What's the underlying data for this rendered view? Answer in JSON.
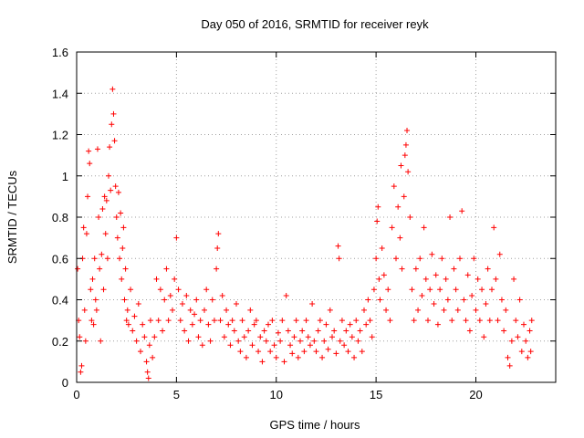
{
  "chart_data": {
    "type": "scatter",
    "title": "Day 050 of 2016, SRMTID for receiver reyk",
    "xlabel": "GPS time / hours",
    "ylabel": "SRMTID / TECUs",
    "xlim": [
      0,
      24
    ],
    "ylim": [
      0,
      1.6
    ],
    "x_ticks": [
      0,
      5,
      10,
      15,
      20
    ],
    "x_tick_labels": [
      "0",
      "5",
      "10",
      "15",
      "20"
    ],
    "y_ticks": [
      0,
      0.2,
      0.4,
      0.6,
      0.8,
      1.0,
      1.2,
      1.4,
      1.6
    ],
    "y_tick_labels": [
      "0",
      "0.2",
      "0.4",
      "0.6",
      "0.8",
      "1",
      "1.2",
      "1.4",
      "1.6"
    ],
    "grid": true,
    "marker": "+",
    "color": "#ff0000",
    "series": [
      {
        "name": "SRMTID",
        "points": [
          [
            0.05,
            0.55
          ],
          [
            0.1,
            0.3
          ],
          [
            0.15,
            0.22
          ],
          [
            0.2,
            0.05
          ],
          [
            0.25,
            0.08
          ],
          [
            0.3,
            0.6
          ],
          [
            0.35,
            0.75
          ],
          [
            0.4,
            0.35
          ],
          [
            0.45,
            0.2
          ],
          [
            0.5,
            0.72
          ],
          [
            0.55,
            0.9
          ],
          [
            0.6,
            1.12
          ],
          [
            0.65,
            1.06
          ],
          [
            0.7,
            0.45
          ],
          [
            0.75,
            0.3
          ],
          [
            0.8,
            0.5
          ],
          [
            0.85,
            0.28
          ],
          [
            0.9,
            0.6
          ],
          [
            0.95,
            0.4
          ],
          [
            1.0,
            0.35
          ],
          [
            1.05,
            1.13
          ],
          [
            1.1,
            0.8
          ],
          [
            1.15,
            0.55
          ],
          [
            1.2,
            0.2
          ],
          [
            1.25,
            0.62
          ],
          [
            1.3,
            0.84
          ],
          [
            1.35,
            0.45
          ],
          [
            1.4,
            0.9
          ],
          [
            1.45,
            0.72
          ],
          [
            1.5,
            0.88
          ],
          [
            1.55,
            0.6
          ],
          [
            1.6,
            1.0
          ],
          [
            1.65,
            1.14
          ],
          [
            1.7,
            0.93
          ],
          [
            1.75,
            1.25
          ],
          [
            1.8,
            1.42
          ],
          [
            1.85,
            1.3
          ],
          [
            1.9,
            1.17
          ],
          [
            1.95,
            0.95
          ],
          [
            2.0,
            0.8
          ],
          [
            2.05,
            0.7
          ],
          [
            2.1,
            0.92
          ],
          [
            2.15,
            0.6
          ],
          [
            2.2,
            0.82
          ],
          [
            2.25,
            0.5
          ],
          [
            2.3,
            0.65
          ],
          [
            2.35,
            0.75
          ],
          [
            2.4,
            0.4
          ],
          [
            2.45,
            0.55
          ],
          [
            2.5,
            0.3
          ],
          [
            2.55,
            0.35
          ],
          [
            2.6,
            0.28
          ],
          [
            2.7,
            0.45
          ],
          [
            2.8,
            0.25
          ],
          [
            2.9,
            0.32
          ],
          [
            3.0,
            0.2
          ],
          [
            3.1,
            0.38
          ],
          [
            3.2,
            0.15
          ],
          [
            3.3,
            0.28
          ],
          [
            3.4,
            0.22
          ],
          [
            3.5,
            0.1
          ],
          [
            3.55,
            0.05
          ],
          [
            3.6,
            0.02
          ],
          [
            3.65,
            0.18
          ],
          [
            3.7,
            0.3
          ],
          [
            3.8,
            0.12
          ],
          [
            3.9,
            0.22
          ],
          [
            4.0,
            0.5
          ],
          [
            4.1,
            0.3
          ],
          [
            4.2,
            0.45
          ],
          [
            4.3,
            0.25
          ],
          [
            4.4,
            0.4
          ],
          [
            4.5,
            0.55
          ],
          [
            4.6,
            0.3
          ],
          [
            4.7,
            0.42
          ],
          [
            4.8,
            0.35
          ],
          [
            4.9,
            0.5
          ],
          [
            5.0,
            0.7
          ],
          [
            5.1,
            0.45
          ],
          [
            5.2,
            0.3
          ],
          [
            5.3,
            0.38
          ],
          [
            5.4,
            0.25
          ],
          [
            5.5,
            0.42
          ],
          [
            5.6,
            0.2
          ],
          [
            5.7,
            0.35
          ],
          [
            5.8,
            0.28
          ],
          [
            5.9,
            0.33
          ],
          [
            6.0,
            0.4
          ],
          [
            6.1,
            0.22
          ],
          [
            6.2,
            0.3
          ],
          [
            6.3,
            0.18
          ],
          [
            6.4,
            0.35
          ],
          [
            6.5,
            0.45
          ],
          [
            6.6,
            0.28
          ],
          [
            6.7,
            0.2
          ],
          [
            6.8,
            0.4
          ],
          [
            6.9,
            0.3
          ],
          [
            7.0,
            0.55
          ],
          [
            7.05,
            0.65
          ],
          [
            7.1,
            0.72
          ],
          [
            7.2,
            0.3
          ],
          [
            7.3,
            0.42
          ],
          [
            7.4,
            0.22
          ],
          [
            7.5,
            0.35
          ],
          [
            7.6,
            0.28
          ],
          [
            7.7,
            0.18
          ],
          [
            7.8,
            0.3
          ],
          [
            7.9,
            0.25
          ],
          [
            8.0,
            0.38
          ],
          [
            8.1,
            0.2
          ],
          [
            8.2,
            0.15
          ],
          [
            8.3,
            0.3
          ],
          [
            8.4,
            0.22
          ],
          [
            8.5,
            0.12
          ],
          [
            8.6,
            0.25
          ],
          [
            8.7,
            0.35
          ],
          [
            8.8,
            0.18
          ],
          [
            8.9,
            0.28
          ],
          [
            9.0,
            0.3
          ],
          [
            9.1,
            0.15
          ],
          [
            9.2,
            0.22
          ],
          [
            9.3,
            0.1
          ],
          [
            9.4,
            0.25
          ],
          [
            9.5,
            0.2
          ],
          [
            9.6,
            0.28
          ],
          [
            9.7,
            0.15
          ],
          [
            9.8,
            0.3
          ],
          [
            9.9,
            0.18
          ],
          [
            10.0,
            0.12
          ],
          [
            10.1,
            0.24
          ],
          [
            10.2,
            0.2
          ],
          [
            10.3,
            0.3
          ],
          [
            10.4,
            0.1
          ],
          [
            10.5,
            0.42
          ],
          [
            10.6,
            0.25
          ],
          [
            10.7,
            0.18
          ],
          [
            10.8,
            0.14
          ],
          [
            10.9,
            0.22
          ],
          [
            11.0,
            0.3
          ],
          [
            11.1,
            0.12
          ],
          [
            11.2,
            0.2
          ],
          [
            11.3,
            0.25
          ],
          [
            11.4,
            0.15
          ],
          [
            11.5,
            0.3
          ],
          [
            11.6,
            0.22
          ],
          [
            11.7,
            0.18
          ],
          [
            11.8,
            0.38
          ],
          [
            11.9,
            0.2
          ],
          [
            12.0,
            0.15
          ],
          [
            12.1,
            0.25
          ],
          [
            12.2,
            0.3
          ],
          [
            12.3,
            0.12
          ],
          [
            12.4,
            0.2
          ],
          [
            12.5,
            0.28
          ],
          [
            12.6,
            0.16
          ],
          [
            12.7,
            0.35
          ],
          [
            12.8,
            0.22
          ],
          [
            12.9,
            0.25
          ],
          [
            13.0,
            0.14
          ],
          [
            13.1,
            0.66
          ],
          [
            13.15,
            0.6
          ],
          [
            13.2,
            0.2
          ],
          [
            13.3,
            0.3
          ],
          [
            13.4,
            0.18
          ],
          [
            13.5,
            0.25
          ],
          [
            13.6,
            0.15
          ],
          [
            13.7,
            0.28
          ],
          [
            13.8,
            0.22
          ],
          [
            13.9,
            0.12
          ],
          [
            14.0,
            0.3
          ],
          [
            14.1,
            0.2
          ],
          [
            14.2,
            0.25
          ],
          [
            14.3,
            0.15
          ],
          [
            14.4,
            0.35
          ],
          [
            14.5,
            0.28
          ],
          [
            14.6,
            0.4
          ],
          [
            14.7,
            0.3
          ],
          [
            14.8,
            0.22
          ],
          [
            14.9,
            0.45
          ],
          [
            15.0,
            0.6
          ],
          [
            15.05,
            0.78
          ],
          [
            15.1,
            0.85
          ],
          [
            15.15,
            0.5
          ],
          [
            15.2,
            0.4
          ],
          [
            15.3,
            0.65
          ],
          [
            15.4,
            0.52
          ],
          [
            15.5,
            0.35
          ],
          [
            15.6,
            0.45
          ],
          [
            15.7,
            0.3
          ],
          [
            15.8,
            0.75
          ],
          [
            15.9,
            0.95
          ],
          [
            16.0,
            0.6
          ],
          [
            16.1,
            0.85
          ],
          [
            16.2,
            0.7
          ],
          [
            16.25,
            1.05
          ],
          [
            16.3,
            0.55
          ],
          [
            16.4,
            0.9
          ],
          [
            16.45,
            1.1
          ],
          [
            16.5,
            1.15
          ],
          [
            16.55,
            1.22
          ],
          [
            16.6,
            1.02
          ],
          [
            16.7,
            0.8
          ],
          [
            16.8,
            0.45
          ],
          [
            16.9,
            0.3
          ],
          [
            17.0,
            0.55
          ],
          [
            17.1,
            0.35
          ],
          [
            17.2,
            0.6
          ],
          [
            17.3,
            0.42
          ],
          [
            17.4,
            0.75
          ],
          [
            17.5,
            0.5
          ],
          [
            17.6,
            0.3
          ],
          [
            17.7,
            0.45
          ],
          [
            17.8,
            0.62
          ],
          [
            17.9,
            0.38
          ],
          [
            18.0,
            0.52
          ],
          [
            18.1,
            0.28
          ],
          [
            18.2,
            0.45
          ],
          [
            18.3,
            0.6
          ],
          [
            18.4,
            0.35
          ],
          [
            18.5,
            0.5
          ],
          [
            18.6,
            0.4
          ],
          [
            18.7,
            0.8
          ],
          [
            18.8,
            0.3
          ],
          [
            18.9,
            0.55
          ],
          [
            19.0,
            0.45
          ],
          [
            19.1,
            0.35
          ],
          [
            19.2,
            0.6
          ],
          [
            19.3,
            0.83
          ],
          [
            19.4,
            0.4
          ],
          [
            19.5,
            0.3
          ],
          [
            19.6,
            0.52
          ],
          [
            19.7,
            0.25
          ],
          [
            19.8,
            0.42
          ],
          [
            19.9,
            0.6
          ],
          [
            20.0,
            0.35
          ],
          [
            20.1,
            0.5
          ],
          [
            20.2,
            0.3
          ],
          [
            20.3,
            0.45
          ],
          [
            20.4,
            0.22
          ],
          [
            20.5,
            0.38
          ],
          [
            20.6,
            0.55
          ],
          [
            20.7,
            0.3
          ],
          [
            20.8,
            0.45
          ],
          [
            20.9,
            0.75
          ],
          [
            21.0,
            0.5
          ],
          [
            21.1,
            0.3
          ],
          [
            21.2,
            0.62
          ],
          [
            21.3,
            0.4
          ],
          [
            21.4,
            0.25
          ],
          [
            21.5,
            0.35
          ],
          [
            21.6,
            0.12
          ],
          [
            21.7,
            0.08
          ],
          [
            21.8,
            0.2
          ],
          [
            21.9,
            0.5
          ],
          [
            22.0,
            0.3
          ],
          [
            22.1,
            0.22
          ],
          [
            22.2,
            0.4
          ],
          [
            22.3,
            0.15
          ],
          [
            22.4,
            0.28
          ],
          [
            22.5,
            0.2
          ],
          [
            22.6,
            0.12
          ],
          [
            22.7,
            0.25
          ],
          [
            22.75,
            0.15
          ],
          [
            22.8,
            0.3
          ]
        ]
      }
    ]
  }
}
